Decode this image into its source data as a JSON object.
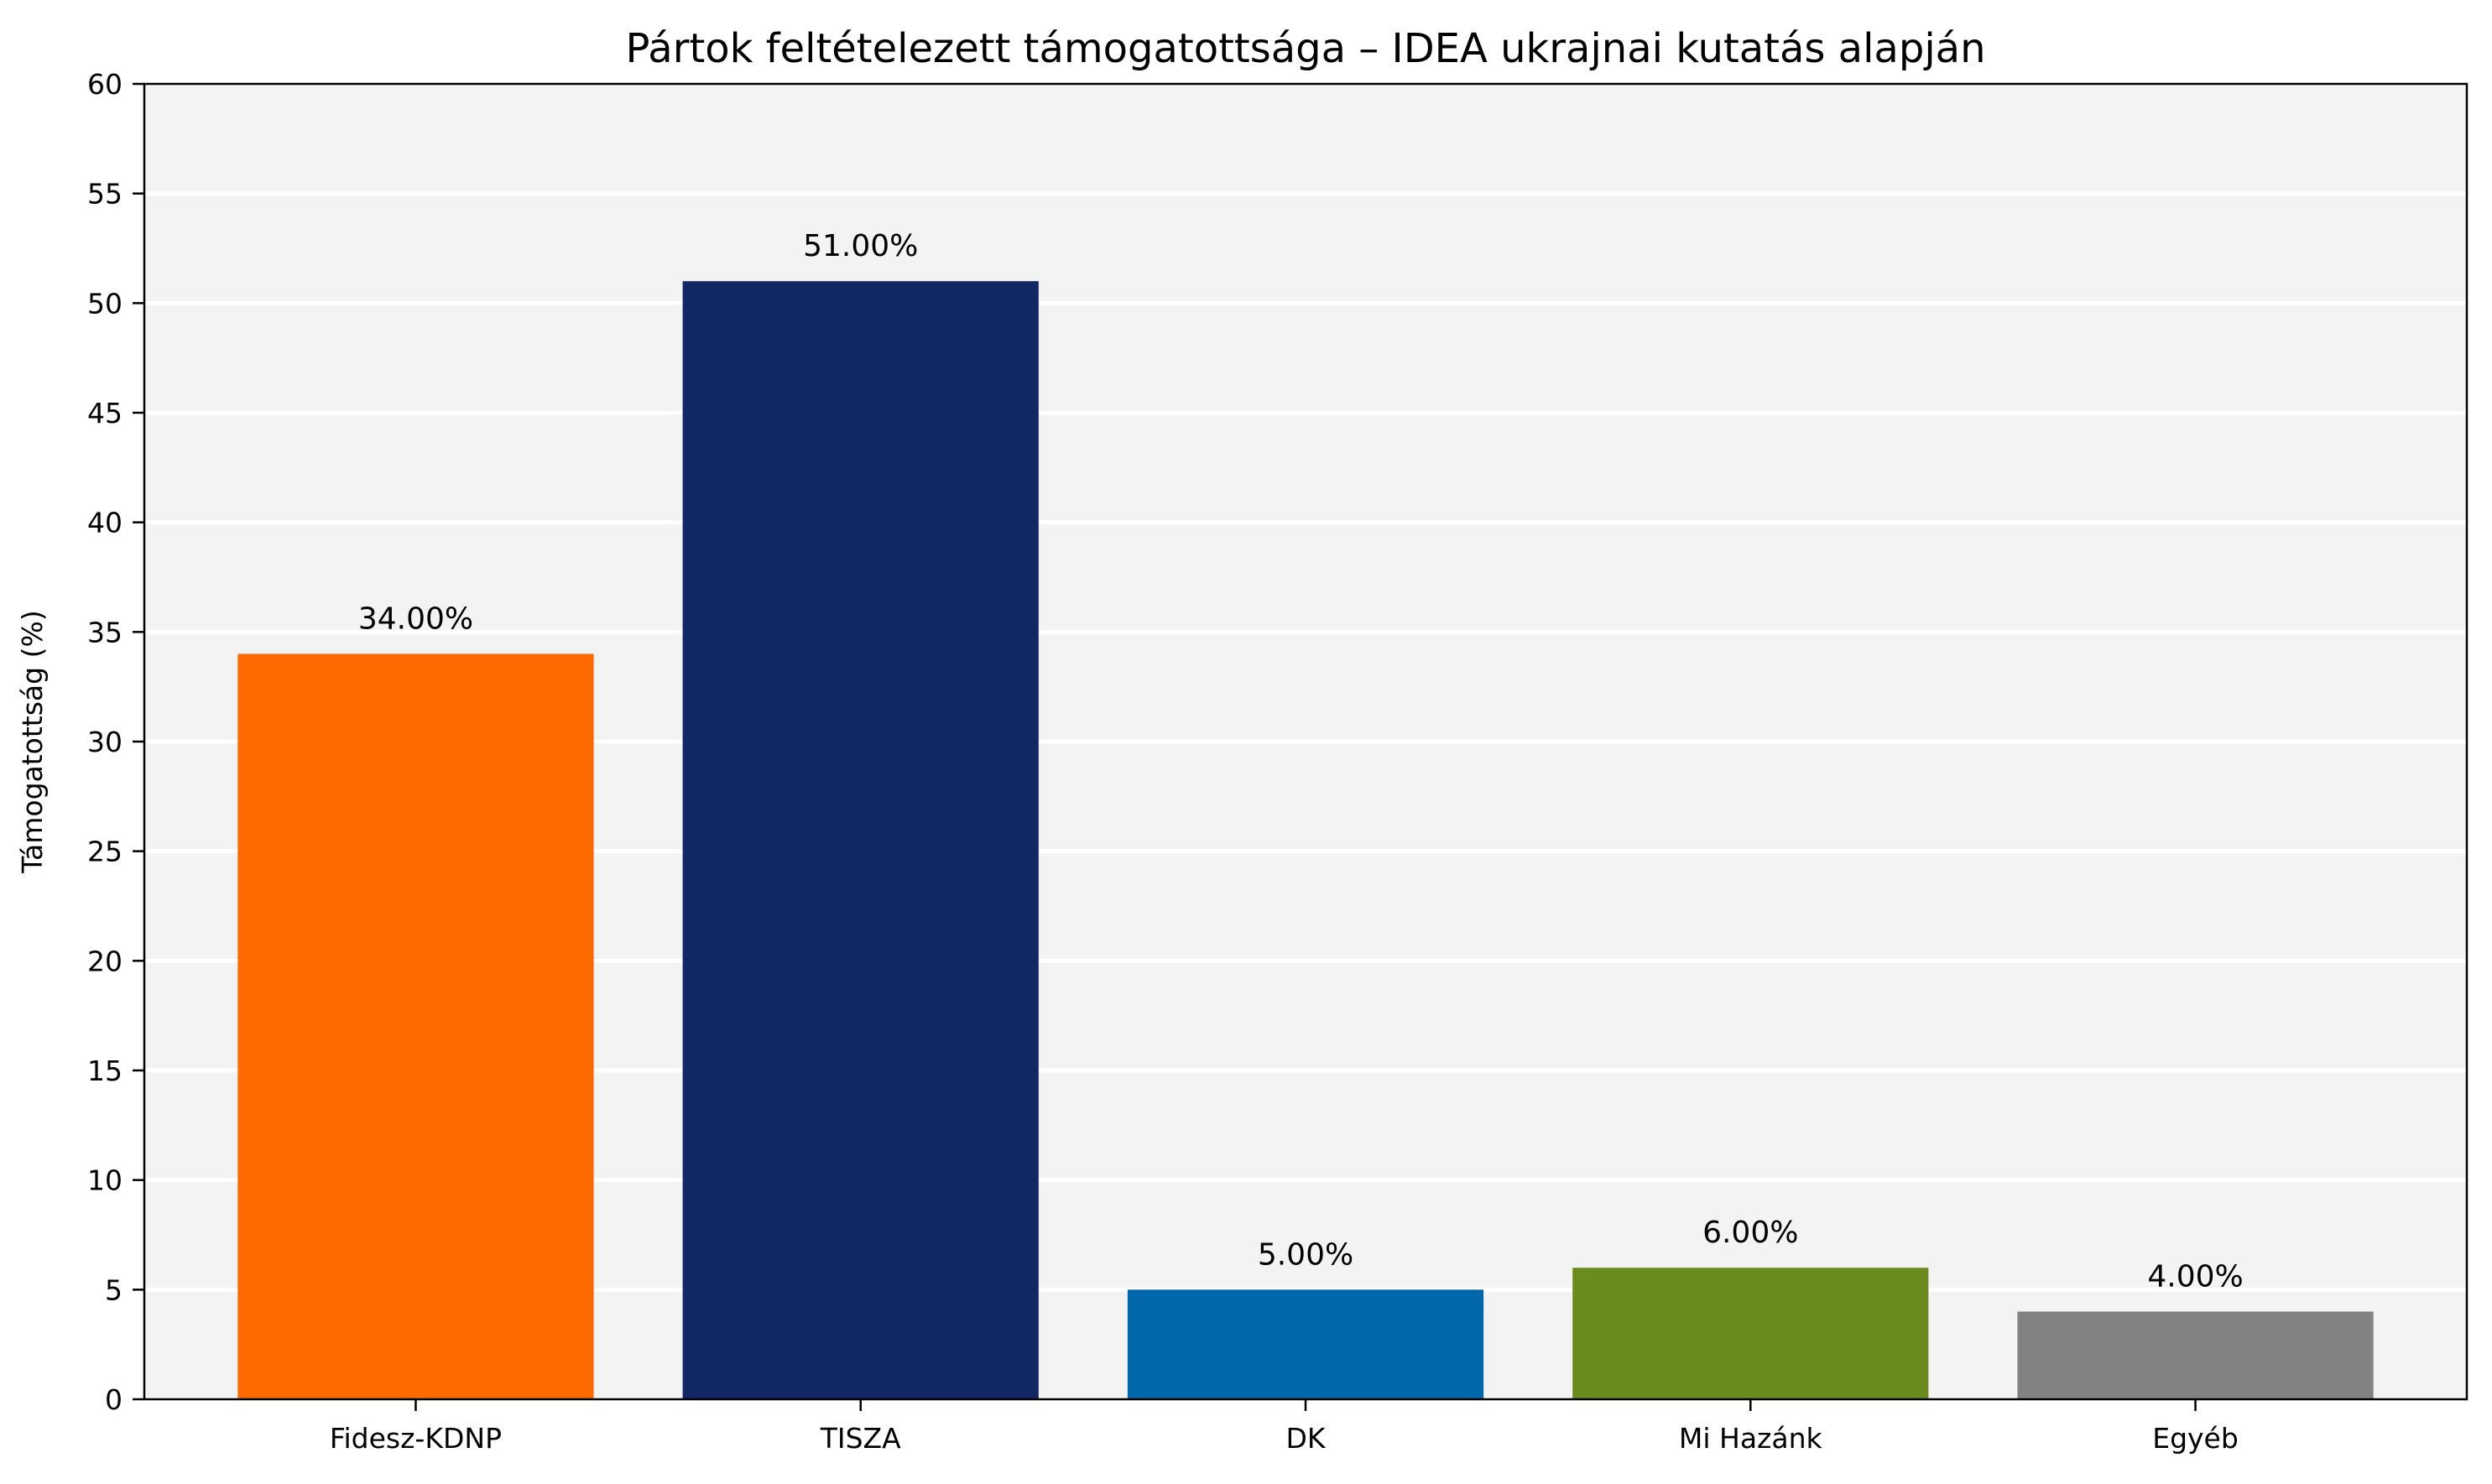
{
  "chart_data": {
    "type": "bar",
    "title": "Pártok feltételezett támogatottsága – IDEA ukrajnai kutatás alapján",
    "xlabel": "",
    "ylabel": "Támogatottság (%)",
    "categories": [
      "Fidesz-KDNP",
      "TISZA",
      "DK",
      "Mi Hazánk",
      "Egyéb"
    ],
    "values": [
      34,
      51,
      5,
      6,
      4
    ],
    "value_labels": [
      "34.00%",
      "51.00%",
      "5.00%",
      "6.00%",
      "4.00%"
    ],
    "colors": [
      "#ff6a00",
      "#122864",
      "#0067aa",
      "#6a8c1f",
      "#828282"
    ],
    "ylim": [
      0,
      60
    ],
    "yticks": [
      "0",
      "5",
      "10",
      "15",
      "20",
      "25",
      "30",
      "35",
      "40",
      "45",
      "50",
      "55",
      "60"
    ],
    "grid": "horizontal",
    "plot_background": "#f3f3f3",
    "grid_color": "#ffffff",
    "legend": "none"
  }
}
